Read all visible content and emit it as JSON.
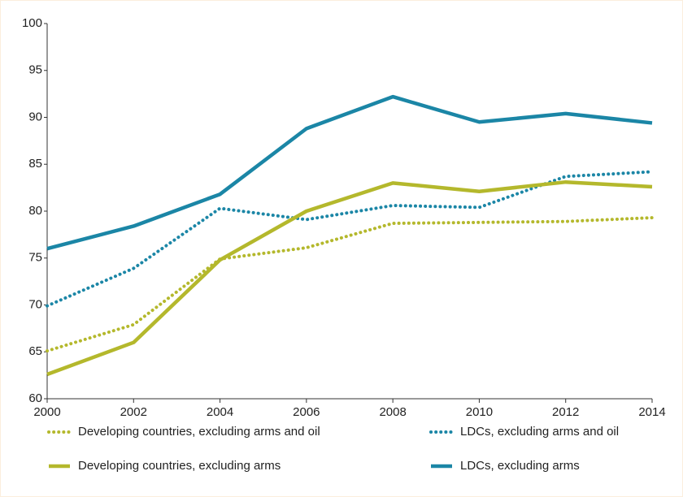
{
  "chart_data": {
    "type": "line",
    "x": [
      2000,
      2002,
      2004,
      2006,
      2008,
      2010,
      2012,
      2014
    ],
    "xlim": [
      2000,
      2014
    ],
    "xticks": [
      2000,
      2002,
      2004,
      2006,
      2008,
      2010,
      2012,
      2014
    ],
    "ylim": [
      60,
      100
    ],
    "yticks": [
      60,
      65,
      70,
      75,
      80,
      85,
      90,
      95,
      100
    ],
    "series": [
      {
        "name": "Developing countries, excluding arms and oil",
        "color": "#b4b82c",
        "style": "dotted",
        "values": [
          65.1,
          67.9,
          74.9,
          76.1,
          78.7,
          78.8,
          78.9,
          79.3
        ]
      },
      {
        "name": "LDCs, excluding arms and oil",
        "color": "#1b86a6",
        "style": "dotted",
        "values": [
          69.9,
          73.9,
          80.3,
          79.1,
          80.6,
          80.4,
          83.7,
          84.2
        ]
      },
      {
        "name": "Developing countries, excluding arms",
        "color": "#b4b82c",
        "style": "solid",
        "values": [
          62.6,
          66.0,
          74.8,
          80.0,
          83.0,
          82.1,
          83.1,
          82.6
        ]
      },
      {
        "name": "LDCs, excluding arms",
        "color": "#1b86a6",
        "style": "solid",
        "values": [
          76.0,
          78.4,
          81.8,
          88.8,
          92.2,
          89.5,
          90.4,
          89.4
        ]
      }
    ]
  }
}
